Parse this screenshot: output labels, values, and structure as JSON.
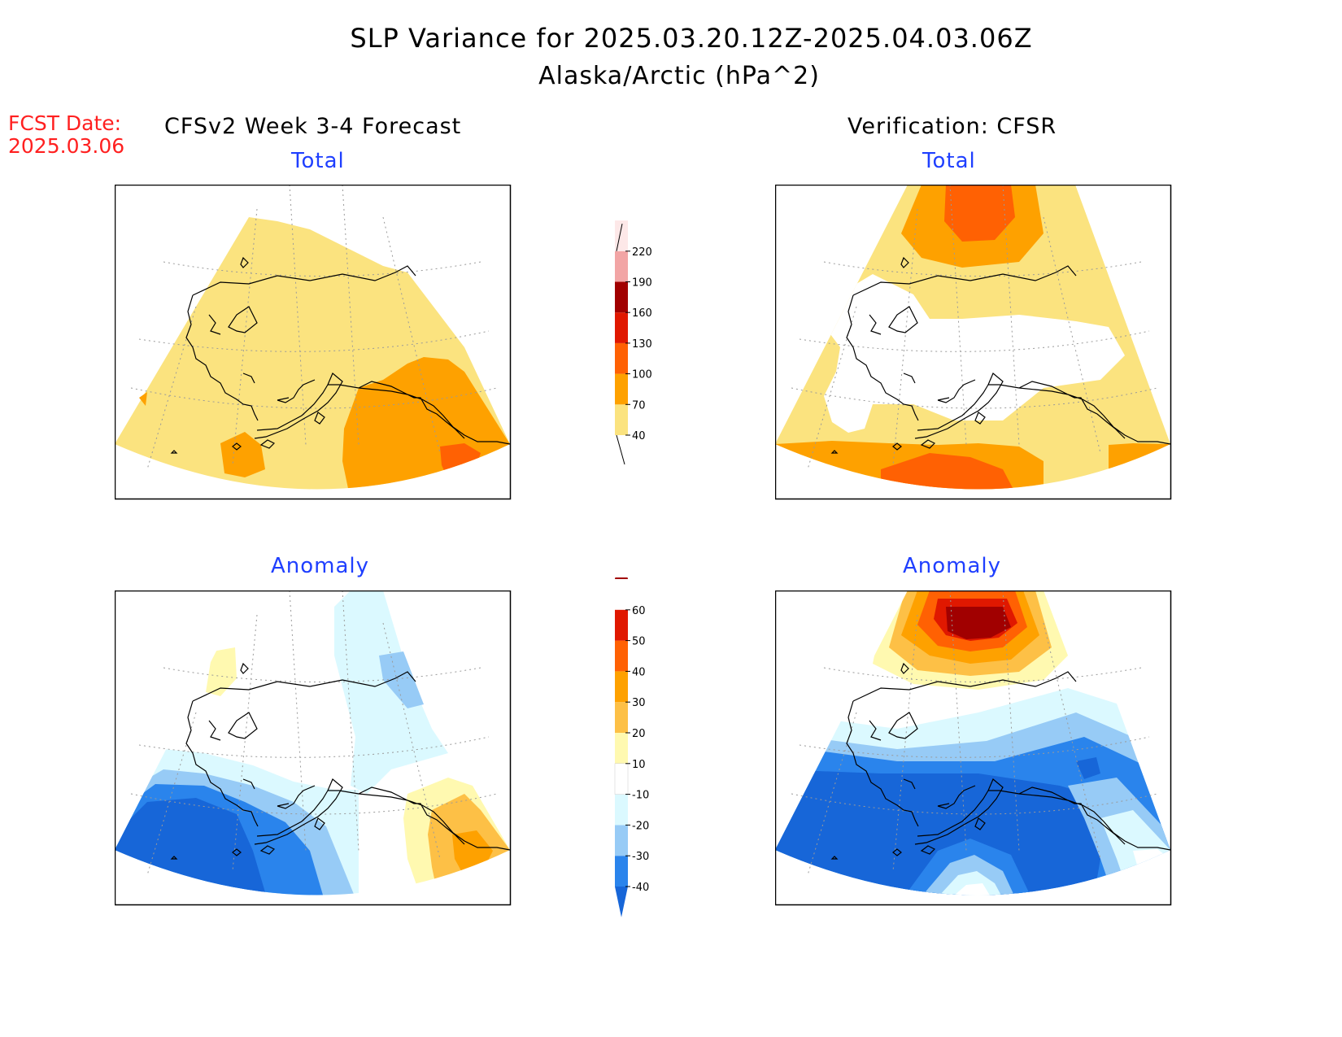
{
  "header": {
    "title": "SLP Variance for 2025.03.20.12Z-2025.04.03.06Z",
    "subtitle": "Alaska/Arctic (hPa^2)"
  },
  "fcst_date": {
    "label": "FCST Date:",
    "value": "2025.03.06"
  },
  "columns": {
    "left": "CFSv2 Week 3-4 Forecast",
    "right": "Verification: CFSR"
  },
  "panels": {
    "forecast_total": {
      "title": "Total"
    },
    "verification_total": {
      "title": "Total"
    },
    "forecast_anomaly": {
      "title": "Anomaly"
    },
    "verification_anomaly": {
      "title": "Anomaly"
    }
  },
  "colorbars": {
    "total": {
      "levels": [
        40,
        70,
        100,
        130,
        160,
        190,
        220
      ],
      "labels": [
        "40",
        "70",
        "100",
        "130",
        "160",
        "190",
        "220"
      ],
      "colors": [
        "#fbe37f",
        "#fea100",
        "#ff6103",
        "#e01800",
        "#a10000",
        "#f2a5a5",
        "#fde8e8"
      ]
    },
    "anomaly": {
      "levels": [
        -40,
        -30,
        -20,
        -10,
        10,
        20,
        30,
        40,
        50,
        60
      ],
      "labels": [
        "-40",
        "-30",
        "-20",
        "-10",
        "10",
        "20",
        "30",
        "40",
        "50",
        "60"
      ],
      "colors": [
        "#1766d8",
        "#2a84ec",
        "#97cbf6",
        "#dbf9ff",
        "#ffffff",
        "#fff9b0",
        "#fdc046",
        "#fea100",
        "#ff6103",
        "#e01800",
        "#a10000"
      ]
    }
  },
  "map_colors": {
    "land_outline": "#000000",
    "grid": "#999999",
    "frame": "#000000"
  }
}
